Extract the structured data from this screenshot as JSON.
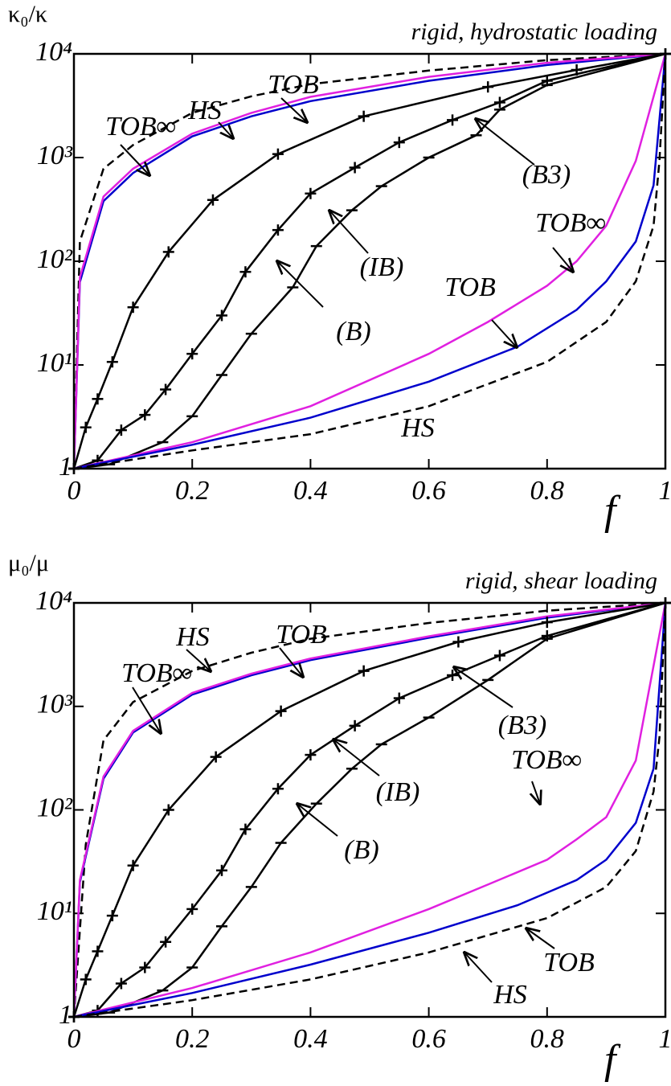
{
  "chart_data": [
    {
      "type": "line",
      "title": "rigid, hydrostatic loading",
      "ylabel": "κ₀/κ",
      "xlabel": "f",
      "xlim": [
        0,
        1
      ],
      "ylim": [
        1,
        10000
      ],
      "ylog": true,
      "xticks": [
        0,
        0.2,
        0.4,
        0.6,
        0.8,
        1
      ],
      "yticks": [
        1,
        {
          "value": 10,
          "label": "10¹"
        },
        {
          "value": 100,
          "label": "10²"
        },
        {
          "value": 1000,
          "label": "10³"
        },
        {
          "value": 10000,
          "label": "10⁴"
        }
      ],
      "series": [
        {
          "name": "HS",
          "color": "#000000",
          "dashed": true,
          "x": [
            0,
            0.01,
            0.05,
            0.1,
            0.2,
            0.3,
            0.4,
            0.6,
            0.8,
            1
          ],
          "values": [
            1,
            155,
            780,
            1320,
            2700,
            3900,
            5100,
            6900,
            8700,
            10000
          ]
        },
        {
          "name": "TOB",
          "color": "#0000cc",
          "x": [
            0,
            0.01,
            0.05,
            0.1,
            0.2,
            0.3,
            0.4,
            0.6,
            0.8,
            1
          ],
          "values": [
            1,
            63,
            380,
            710,
            1600,
            2500,
            3500,
            5500,
            7800,
            10000
          ]
        },
        {
          "name": "TOB∞",
          "color": "#e020e0",
          "x": [
            0,
            0.01,
            0.05,
            0.1,
            0.2,
            0.3,
            0.4,
            0.6,
            0.8,
            1
          ],
          "values": [
            1,
            70,
            420,
            780,
            1700,
            2700,
            3850,
            6000,
            8200,
            10000
          ]
        },
        {
          "name": "(B3)",
          "color": "#000000",
          "marker": "plus",
          "x": [
            0,
            0.02,
            0.04,
            0.065,
            0.1,
            0.16,
            0.235,
            0.345,
            0.49,
            0.7,
            0.85,
            1
          ],
          "values": [
            1,
            2.5,
            4.7,
            10.7,
            36,
            123,
            390,
            1080,
            2500,
            4800,
            7000,
            10000
          ]
        },
        {
          "name": "(IB)",
          "color": "#000000",
          "marker": "plus",
          "x": [
            0,
            0.04,
            0.08,
            0.12,
            0.155,
            0.2,
            0.25,
            0.29,
            0.345,
            0.4,
            0.475,
            0.55,
            0.64,
            0.72,
            0.8,
            1
          ],
          "values": [
            1,
            1.2,
            2.35,
            3.3,
            5.8,
            12.8,
            30,
            79,
            200,
            450,
            800,
            1400,
            2300,
            3400,
            5500,
            10000
          ]
        },
        {
          "name": "(B)",
          "color": "#000000",
          "marker": "dash",
          "x": [
            0,
            0.06,
            0.15,
            0.2,
            0.25,
            0.3,
            0.37,
            0.41,
            0.47,
            0.52,
            0.6,
            0.68,
            0.72,
            0.8,
            1
          ],
          "values": [
            1,
            1.1,
            1.8,
            3.2,
            8,
            20,
            56,
            140,
            310,
            530,
            1000,
            1640,
            2900,
            5000,
            10000
          ]
        },
        {
          "name": "TOB∞",
          "color": "#e020e0",
          "x": [
            0,
            0.2,
            0.4,
            0.6,
            0.7,
            0.8,
            0.85,
            0.9,
            0.95,
            1
          ],
          "values": [
            1,
            1.8,
            4,
            12.8,
            26,
            58,
            100,
            220,
            930,
            10000
          ]
        },
        {
          "name": "TOB",
          "color": "#0000cc",
          "x": [
            0,
            0.2,
            0.4,
            0.6,
            0.75,
            0.85,
            0.9,
            0.95,
            0.98,
            1
          ],
          "values": [
            1,
            1.7,
            3.1,
            6.9,
            15,
            34,
            64,
            155,
            540,
            10000
          ]
        },
        {
          "name": "HS",
          "color": "#000000",
          "dashed": true,
          "x": [
            0,
            0.2,
            0.4,
            0.6,
            0.8,
            0.9,
            0.95,
            0.98,
            0.99,
            1
          ],
          "values": [
            1,
            1.5,
            2.15,
            4,
            10.7,
            26,
            64,
            220,
            930,
            10000
          ]
        }
      ]
    },
    {
      "type": "line",
      "title": "rigid, shear loading",
      "ylabel": "μ₀/μ",
      "xlabel": "f",
      "xlim": [
        0,
        1
      ],
      "ylim": [
        1,
        10000
      ],
      "ylog": true,
      "xticks": [
        0,
        0.2,
        0.4,
        0.6,
        0.8,
        1
      ],
      "yticks": [
        1,
        {
          "value": 10,
          "label": "10¹"
        },
        {
          "value": 100,
          "label": "10²"
        },
        {
          "value": 1000,
          "label": "10³"
        },
        {
          "value": 10000,
          "label": "10⁴"
        }
      ],
      "series": [
        {
          "name": "HS",
          "color": "#000000",
          "dashed": true,
          "x": [
            0,
            0.02,
            0.05,
            0.1,
            0.2,
            0.3,
            0.4,
            0.6,
            0.8,
            1
          ],
          "values": [
            1,
            46,
            470,
            1100,
            2200,
            3300,
            4500,
            6400,
            8400,
            10000
          ]
        },
        {
          "name": "TOB",
          "color": "#0000cc",
          "x": [
            0,
            0.01,
            0.05,
            0.1,
            0.2,
            0.3,
            0.4,
            0.6,
            0.8,
            1
          ],
          "values": [
            1,
            20,
            200,
            560,
            1300,
            2000,
            2800,
            4600,
            7200,
            10000
          ]
        },
        {
          "name": "TOB∞",
          "color": "#e020e0",
          "x": [
            0,
            0.01,
            0.05,
            0.1,
            0.2,
            0.3,
            0.4,
            0.6,
            0.8,
            1
          ],
          "values": [
            1,
            21,
            210,
            580,
            1350,
            2070,
            2900,
            4750,
            7400,
            10000
          ]
        },
        {
          "name": "(B3)",
          "color": "#000000",
          "marker": "plus",
          "x": [
            0,
            0.02,
            0.04,
            0.065,
            0.1,
            0.16,
            0.24,
            0.35,
            0.49,
            0.65,
            0.8,
            1
          ],
          "values": [
            1,
            2.3,
            4.3,
            9.5,
            29,
            100,
            325,
            900,
            2200,
            4200,
            6500,
            10000
          ]
        },
        {
          "name": "(IB)",
          "color": "#000000",
          "marker": "plus",
          "x": [
            0,
            0.04,
            0.08,
            0.12,
            0.155,
            0.2,
            0.25,
            0.29,
            0.345,
            0.4,
            0.475,
            0.55,
            0.64,
            0.72,
            0.8,
            1
          ],
          "values": [
            1,
            1.15,
            2.1,
            3,
            5.3,
            11,
            26,
            65,
            160,
            340,
            650,
            1200,
            2000,
            3100,
            4800,
            10000
          ]
        },
        {
          "name": "(B)",
          "color": "#000000",
          "marker": "dash",
          "x": [
            0,
            0.06,
            0.15,
            0.2,
            0.25,
            0.3,
            0.35,
            0.41,
            0.47,
            0.52,
            0.6,
            0.7,
            0.8,
            1
          ],
          "values": [
            1,
            1.1,
            1.8,
            3,
            7.5,
            18,
            48,
            115,
            250,
            430,
            780,
            1800,
            4500,
            10000
          ]
        },
        {
          "name": "TOB∞",
          "color": "#e020e0",
          "x": [
            0,
            0.2,
            0.4,
            0.6,
            0.7,
            0.8,
            0.85,
            0.9,
            0.95,
            1
          ],
          "values": [
            1,
            1.9,
            4.2,
            11,
            19,
            33,
            52,
            85,
            300,
            10000
          ]
        },
        {
          "name": "TOB",
          "color": "#0000cc",
          "x": [
            0,
            0.2,
            0.4,
            0.6,
            0.75,
            0.85,
            0.9,
            0.95,
            0.98,
            1
          ],
          "values": [
            1,
            1.7,
            3.2,
            6.5,
            12,
            21,
            33,
            75,
            250,
            10000
          ]
        },
        {
          "name": "HS",
          "color": "#000000",
          "dashed": true,
          "x": [
            0,
            0.2,
            0.4,
            0.6,
            0.8,
            0.9,
            0.95,
            0.98,
            0.99,
            1
          ],
          "values": [
            1,
            1.45,
            2.3,
            4.2,
            9,
            18,
            40,
            150,
            500,
            10000
          ]
        }
      ]
    }
  ]
}
